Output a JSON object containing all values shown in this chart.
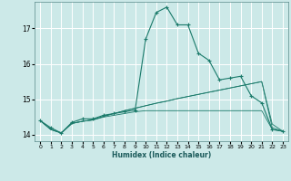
{
  "xlabel": "Humidex (Indice chaleur)",
  "bg_color": "#cce9e8",
  "grid_color": "#b8d8d8",
  "line_color": "#1a7a6a",
  "xlim": [
    -0.5,
    23.5
  ],
  "ylim": [
    13.82,
    17.75
  ],
  "yticks": [
    14,
    15,
    16,
    17
  ],
  "xticks": [
    0,
    1,
    2,
    3,
    4,
    5,
    6,
    7,
    8,
    9,
    10,
    11,
    12,
    13,
    14,
    15,
    16,
    17,
    18,
    19,
    20,
    21,
    22,
    23
  ],
  "main_y": [
    14.4,
    14.2,
    14.05,
    14.35,
    14.45,
    14.45,
    14.55,
    14.6,
    14.65,
    14.7,
    16.7,
    17.45,
    17.6,
    17.1,
    17.1,
    16.3,
    16.1,
    15.55,
    15.6,
    15.65,
    15.1,
    14.9,
    14.15,
    14.1
  ],
  "flat_lines": [
    [
      14.4,
      14.15,
      14.05,
      14.32,
      14.38,
      14.42,
      14.5,
      14.55,
      14.6,
      14.65,
      14.68,
      14.68,
      14.68,
      14.68,
      14.68,
      14.68,
      14.68,
      14.68,
      14.68,
      14.68,
      14.68,
      14.68,
      14.15,
      14.1
    ],
    [
      14.4,
      14.15,
      14.05,
      14.32,
      14.38,
      14.42,
      14.52,
      14.6,
      14.68,
      14.75,
      14.82,
      14.89,
      14.95,
      15.02,
      15.08,
      15.14,
      15.2,
      15.26,
      15.32,
      15.38,
      15.44,
      15.5,
      14.2,
      14.1
    ],
    [
      14.4,
      14.15,
      14.05,
      14.32,
      14.38,
      14.42,
      14.52,
      14.6,
      14.68,
      14.75,
      14.82,
      14.89,
      14.95,
      15.02,
      15.08,
      15.14,
      15.2,
      15.26,
      15.32,
      15.38,
      15.44,
      15.5,
      14.3,
      14.1
    ]
  ]
}
